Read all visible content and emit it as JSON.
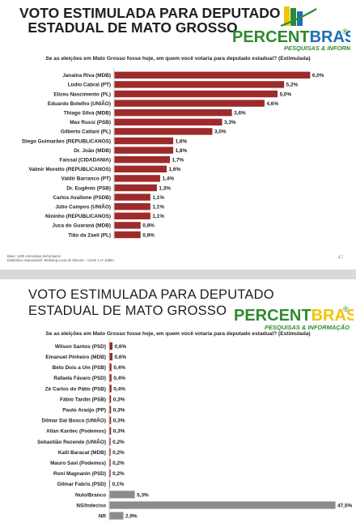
{
  "slides": [
    {
      "title_line1": "VOTO ESTIMULADA PARA DEPUTADO",
      "title_line2": "ESTADUAL DE MATO GROSSO",
      "question": "Se as eleições em Mato Grosso fosse hoje, em quem você votaria para deputado estadual? (Estimulada)",
      "footer_line1": "Base: 1200 entrevistas domiciliares",
      "footer_line2": "Estatístico responsável: Wellwing Lucia de Oliveira – Conre 1 nº 10864",
      "page_number": "47"
    },
    {
      "title_line1": "VOTO ESTIMULADA PARA DEPUTADO",
      "title_line2": "ESTADUAL DE MATO GROSSO",
      "question": "Se as eleições em Mato Grosso fosse hoje, em quem você votaria para deputado estadual? (Estimulada)"
    }
  ],
  "logo": {
    "word1": "PERCENT",
    "word2": "BRASIL",
    "registered": "®",
    "tagline": "PESQUISAS & INFORMAÇÃO",
    "colors": {
      "green": "#2e8b2e",
      "yellow": "#f2c500",
      "blue": "#1c6fb8",
      "tagline": "#2e8b2e"
    }
  },
  "chart_data": [
    {
      "type": "bar",
      "orientation": "horizontal",
      "xlim": [
        0,
        6.3
      ],
      "color": "#9e2b2b",
      "categories": [
        "Janaina Riva (MDB)",
        "Lúdio Cabral (PT)",
        "Elizeu Nascimento (PL)",
        "Eduardo Botelho (UNIÃO)",
        "Thiago Silva (MDB)",
        "Max Russi (PSB)",
        "Gilberto Cattani (PL)",
        "Diego Guimarães (REPUBLICANOS)",
        "Dr. João (MDB)",
        "Faissal (CIDADANIA)",
        "Valmir Moretto (REPUBLICANOS)",
        "Valdir Barranco (PT)",
        "Dr. Eugênio (PSB)",
        "Carlos Avallone (PSDB)",
        "Júlio Campos (UNIÃO)",
        "Nininho (REPUBLICANOS)",
        "Juca do Guaraná (MDB)",
        "Tião da Zaeli (PL)"
      ],
      "values": [
        6.0,
        5.2,
        5.0,
        4.6,
        3.6,
        3.3,
        3.0,
        1.8,
        1.8,
        1.7,
        1.6,
        1.4,
        1.3,
        1.1,
        1.1,
        1.1,
        0.8,
        0.8
      ],
      "labels": [
        "6,0%",
        "5,2%",
        "5,0%",
        "4,6%",
        "3,6%",
        "3,3%",
        "3,0%",
        "1,8%",
        "1,8%",
        "1,7%",
        "1,6%",
        "1,4%",
        "1,3%",
        "1,1%",
        "1,1%",
        "1,1%",
        "0,8%",
        "0,8%"
      ]
    },
    {
      "type": "bar",
      "orientation": "horizontal",
      "xlim": [
        0,
        48
      ],
      "color": "#9e2b2b",
      "special_color": "#8c8c8c",
      "categories": [
        "Wilson Santos (PSD)",
        "Emanuel Pinheiro (MDB)",
        "Beto Dois a Um (PSB)",
        "Rafaela Fávaro (PSD)",
        "Zé Carlos do Pátio (PSB)",
        "Fábio Tardin (PSB)",
        "Paulo Araújo (PP)",
        "Dilmar Dal Bosco (UNIÃO)",
        "Allan Kardec (Podemos)",
        "Sebastião Rezende (UNIÃO)",
        "Kalil Baracat (MDB)",
        "Mauro Savi (Podemos)",
        "Roni Magnanin (PSD)",
        "Gilmar Fabris (PSD)",
        "Nulo/Branco",
        "NS/Indeciso",
        "NR"
      ],
      "values": [
        0.6,
        0.6,
        0.4,
        0.4,
        0.4,
        0.3,
        0.3,
        0.3,
        0.3,
        0.2,
        0.2,
        0.2,
        0.2,
        0.1,
        5.3,
        47.5,
        2.9
      ],
      "labels": [
        "0,6%",
        "0,6%",
        "0,4%",
        "0,4%",
        "0,4%",
        "0,3%",
        "0,3%",
        "0,3%",
        "0,3%",
        "0,2%",
        "0,2%",
        "0,2%",
        "0,2%",
        "0,1%",
        "5,3%",
        "47,5%",
        "2,9%"
      ],
      "special": [
        false,
        false,
        false,
        false,
        false,
        false,
        false,
        false,
        false,
        false,
        false,
        false,
        false,
        false,
        true,
        true,
        true
      ]
    }
  ]
}
